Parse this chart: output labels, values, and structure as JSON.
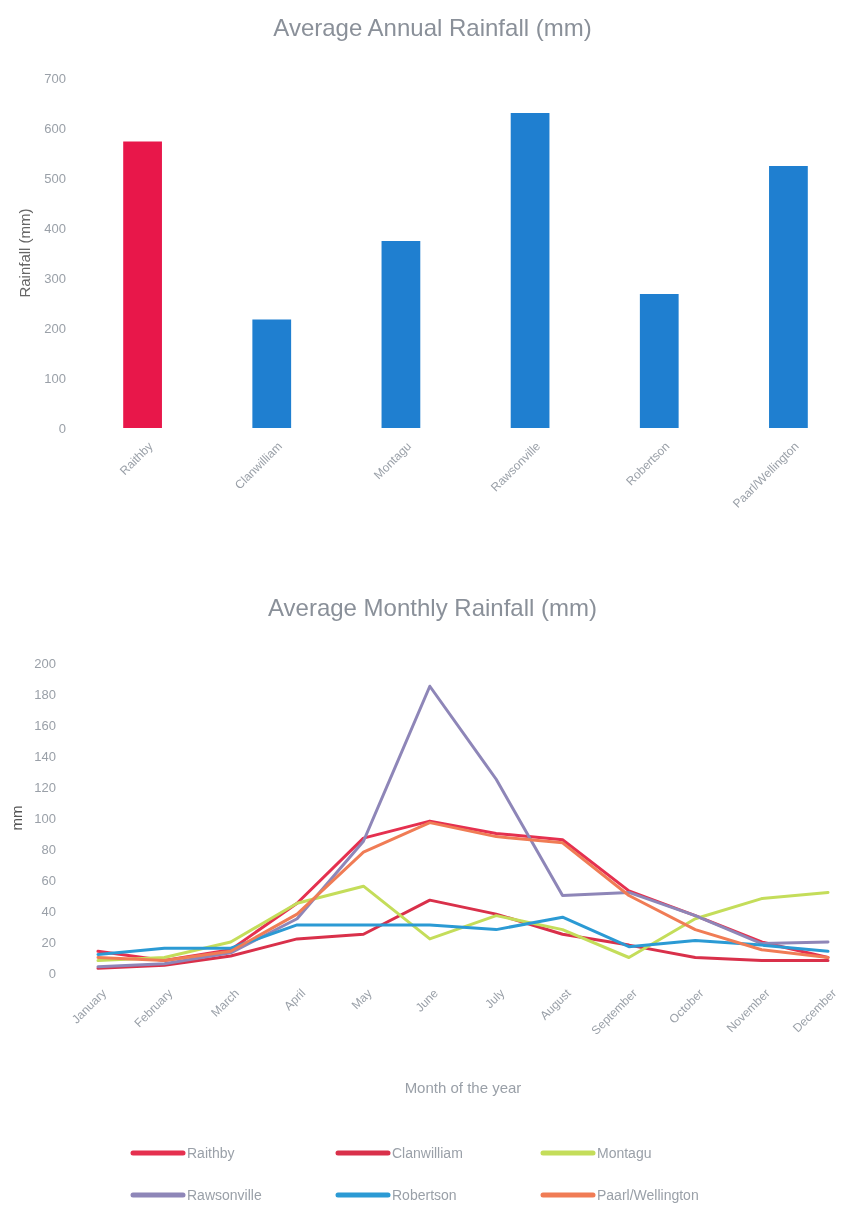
{
  "chart_data": [
    {
      "type": "bar",
      "title": "Average Annual Rainfall (mm)",
      "ylabel": "Rainfall (mm)",
      "categories": [
        "Raithby",
        "Clanwilliam",
        "Montagu",
        "Rawsonville",
        "Robertson",
        "Paarl/Wellington"
      ],
      "values": [
        573,
        217,
        374,
        630,
        268,
        524
      ],
      "colors": [
        "#e8174a",
        "#1f7fd0",
        "#1f7fd0",
        "#1f7fd0",
        "#1f7fd0",
        "#1f7fd0"
      ],
      "ylim": [
        0,
        700
      ],
      "yticks": [
        0,
        100,
        200,
        300,
        400,
        500,
        600,
        700
      ],
      "grid": false,
      "legend": false
    },
    {
      "type": "line",
      "title": "Average Monthly Rainfall (mm)",
      "xlabel": "Month of the year",
      "ylabel": "mm",
      "categories": [
        "January",
        "February",
        "March",
        "April",
        "May",
        "June",
        "July",
        "August",
        "September",
        "October",
        "November",
        "December"
      ],
      "ylim": [
        0,
        200
      ],
      "yticks": [
        0,
        20,
        40,
        60,
        80,
        100,
        120,
        140,
        160,
        180,
        200
      ],
      "grid": false,
      "legend": "bottom",
      "marker": "none",
      "series": [
        {
          "name": "Raithby",
          "color": "#e5304f",
          "values": [
            14,
            8,
            15,
            45,
            87,
            98,
            90,
            86,
            53,
            37,
            20,
            10
          ]
        },
        {
          "name": "Clanwilliam",
          "color": "#d9304a",
          "values": [
            3,
            5,
            11,
            22,
            25,
            47,
            38,
            25,
            18,
            10,
            8,
            8
          ]
        },
        {
          "name": "Montagu",
          "color": "#c4dd5a",
          "values": [
            8,
            10,
            20,
            45,
            56,
            22,
            37,
            28,
            10,
            35,
            48,
            52
          ]
        },
        {
          "name": "Rawsonville",
          "color": "#8e86b8",
          "values": [
            4,
            6,
            13,
            35,
            85,
            185,
            125,
            50,
            52,
            37,
            19,
            20
          ]
        },
        {
          "name": "Robertson",
          "color": "#2b9ad4",
          "values": [
            12,
            16,
            16,
            31,
            31,
            31,
            28,
            36,
            17,
            21,
            18,
            14
          ]
        },
        {
          "name": "Paarl/Wellington",
          "color": "#f07c55",
          "values": [
            10,
            8,
            14,
            38,
            78,
            97,
            88,
            84,
            50,
            28,
            15,
            10
          ]
        }
      ]
    }
  ]
}
